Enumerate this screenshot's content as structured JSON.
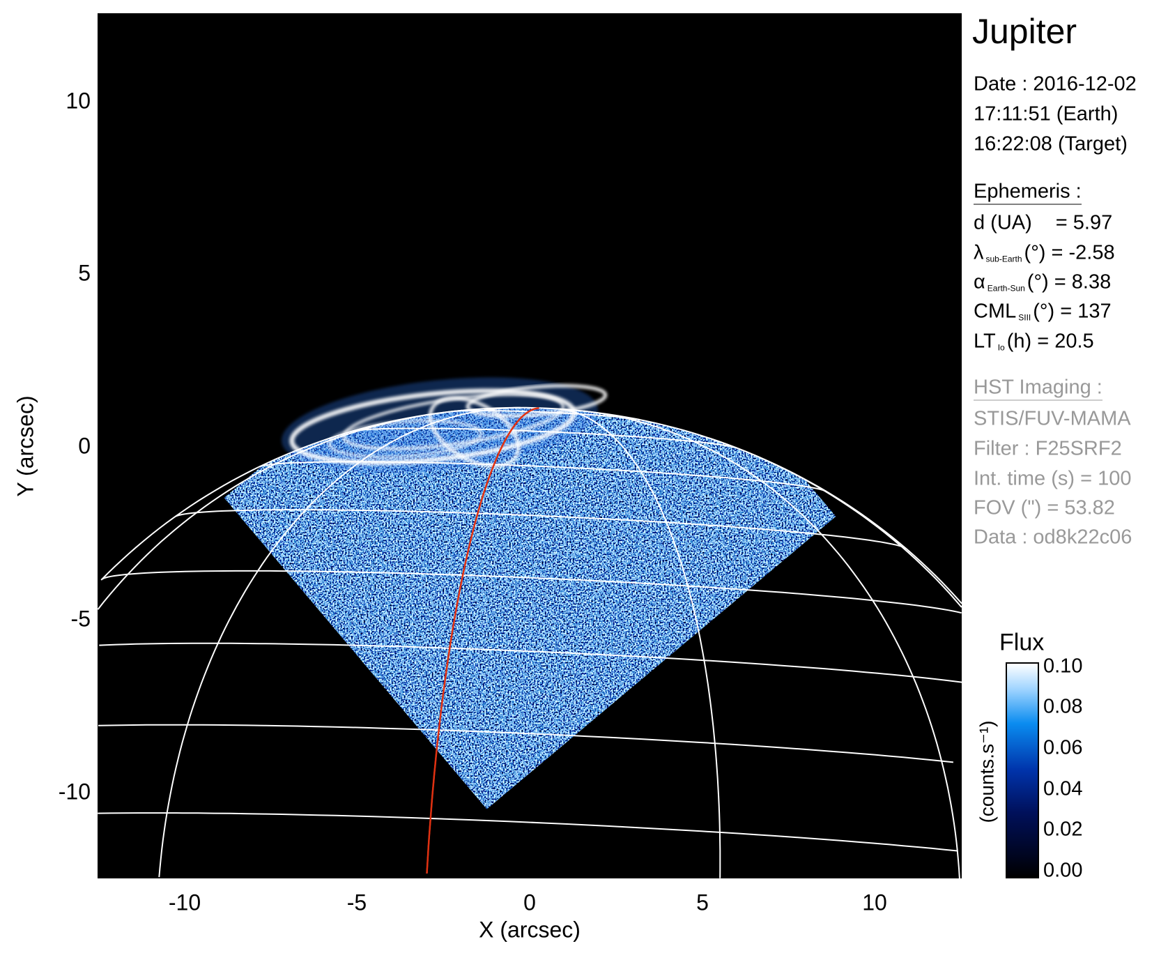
{
  "chart_data": {
    "type": "heatmap",
    "title": "Jupiter",
    "xlabel": "X (arcsec)",
    "ylabel": "Y (arcsec)",
    "xlim": [
      -12.5,
      12.5
    ],
    "ylim": [
      -12.5,
      12.5
    ],
    "xticks": [
      "-10",
      "-5",
      "0",
      "5",
      "10"
    ],
    "xtick_values": [
      -10,
      -5,
      0,
      5,
      10
    ],
    "yticks": [
      "-10",
      "-5",
      "0",
      "5",
      "10"
    ],
    "ytick_values": [
      -10,
      -5,
      0,
      5,
      10
    ],
    "grid": "planetographic latitude/longitude grid overlaid on planet disc",
    "colorbar": {
      "title": "Flux",
      "label": "(counts.s⁻¹)",
      "range": [
        0.0,
        0.1
      ],
      "ticks": [
        "0.00",
        "0.02",
        "0.04",
        "0.06",
        "0.08",
        "0.10"
      ],
      "tick_values": [
        0.0,
        0.02,
        0.04,
        0.06,
        0.08,
        0.1
      ],
      "colormap": [
        "#000000",
        "#00105a",
        "#0033aa",
        "#0a8cf0",
        "#9fd4ff",
        "#ffffff"
      ]
    },
    "colors": {
      "grid": "#ffffff",
      "highlight_meridian": "#e03010",
      "background": "#000000"
    }
  },
  "info": {
    "target": "Jupiter",
    "date": "Date : 2016-12-02",
    "time_earth": "17:11:51 (Earth)",
    "time_target": "16:22:08 (Target)",
    "ephemeris_title": "Ephemeris :",
    "d_label": "d (UA)",
    "d_value": "= 5.97",
    "lambda_sym": "λ",
    "lambda_sub": "sub-Earth",
    "lambda_value": "(°) = -2.58",
    "alpha_sym": "α",
    "alpha_sub": "Earth-Sun",
    "alpha_value": "(°) = 8.38",
    "cml_sym": "CML",
    "cml_sub": "SIII",
    "cml_value": "(°) = 137",
    "lt_sym": "LT",
    "lt_sub": "Io",
    "lt_value": "(h) = 20.5",
    "hst_title": "HST Imaging :",
    "instrument": "STIS/FUV-MAMA",
    "filter": "Filter : F25SRF2",
    "int_time": "Int. time (s) = 100",
    "fov": "FOV (\") = 53.82",
    "data_id": "Data : od8k22c06"
  }
}
